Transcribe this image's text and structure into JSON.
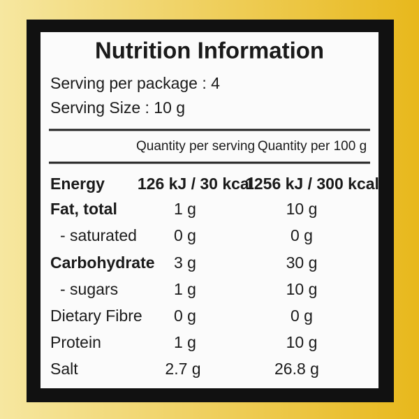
{
  "header": {
    "title": "Nutrition Information",
    "serving_per_package": "Serving per package : 4",
    "serving_size": "Serving Size : 10 g"
  },
  "table": {
    "columns": [
      "Quantity per serving",
      "Quantity per 100 g"
    ],
    "rows": [
      [
        "Energy",
        "126 kJ / 30 kcal",
        "1256 kJ / 300 kcal"
      ],
      [
        "Fat, total",
        "1 g",
        "10 g"
      ],
      [
        "- saturated",
        "0 g",
        "0 g"
      ],
      [
        "Carbohydrate",
        "3 g",
        "30 g"
      ],
      [
        "- sugars",
        "1 g",
        "10 g"
      ],
      [
        "Dietary Fibre",
        "0 g",
        "0 g"
      ],
      [
        "Protein",
        "1 g",
        "10 g"
      ],
      [
        "Salt",
        "2.7 g",
        "26.8 g"
      ]
    ]
  }
}
